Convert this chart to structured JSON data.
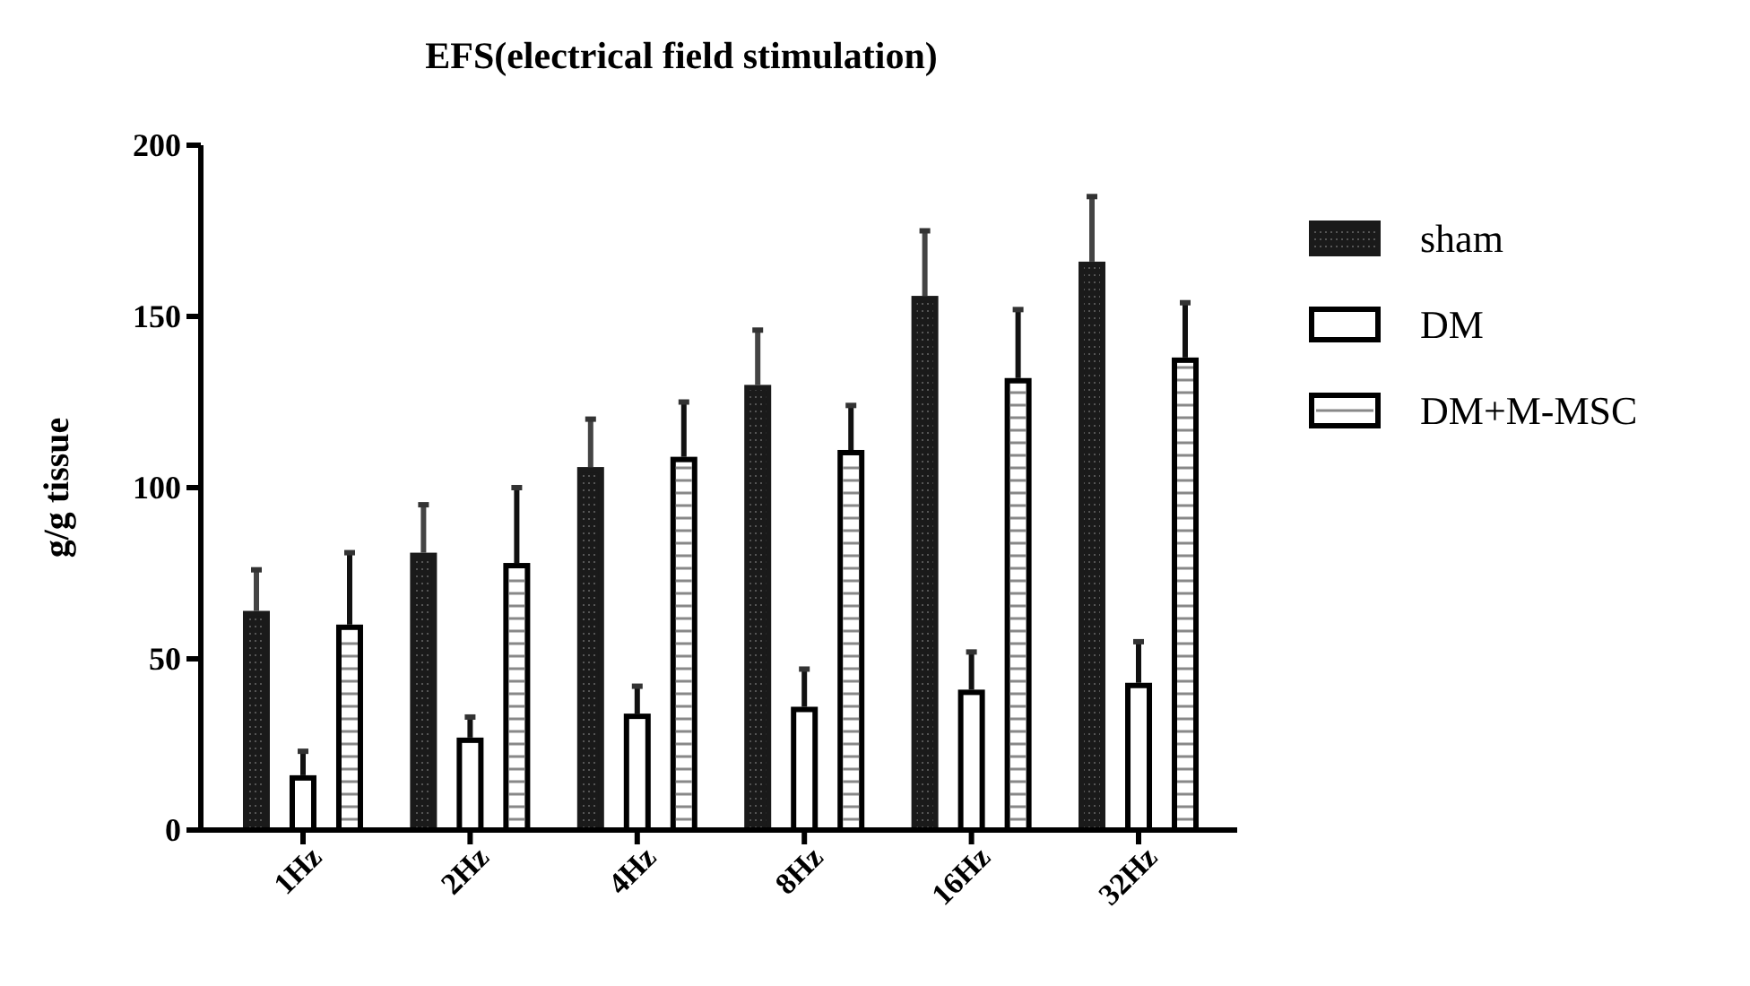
{
  "chart_data": {
    "type": "bar",
    "title": "EFS(electrical field stimulation)",
    "ylabel": "g/g tissue",
    "categories": [
      "1Hz",
      "2Hz",
      "4Hz",
      "8Hz",
      "16Hz",
      "32Hz"
    ],
    "series": [
      {
        "name": "sham",
        "color": "#1a1a1a",
        "values": [
          64,
          81,
          106,
          130,
          156,
          166
        ],
        "errors": [
          [
            64,
            76
          ],
          [
            81,
            95
          ],
          [
            106,
            120
          ],
          [
            130,
            146
          ],
          [
            156,
            175
          ],
          [
            166,
            185
          ]
        ]
      },
      {
        "name": "DM",
        "color": "#ffffff",
        "values": [
          16,
          27,
          34,
          36,
          41,
          43
        ],
        "errors": [
          [
            16,
            23
          ],
          [
            27,
            33
          ],
          [
            34,
            42
          ],
          [
            36,
            47
          ],
          [
            41,
            52
          ],
          [
            43,
            55
          ]
        ]
      },
      {
        "name": "DM+M-MSC",
        "color": "#ffffff",
        "values": [
          60,
          78,
          109,
          111,
          132,
          138
        ],
        "errors": [
          [
            60,
            81
          ],
          [
            78,
            100
          ],
          [
            109,
            125
          ],
          [
            111,
            124
          ],
          [
            132,
            152
          ],
          [
            138,
            154
          ]
        ]
      }
    ],
    "ylim": [
      0,
      200
    ],
    "yticks": [
      0,
      50,
      100,
      150,
      200
    ],
    "grid": false,
    "legend": "right"
  }
}
